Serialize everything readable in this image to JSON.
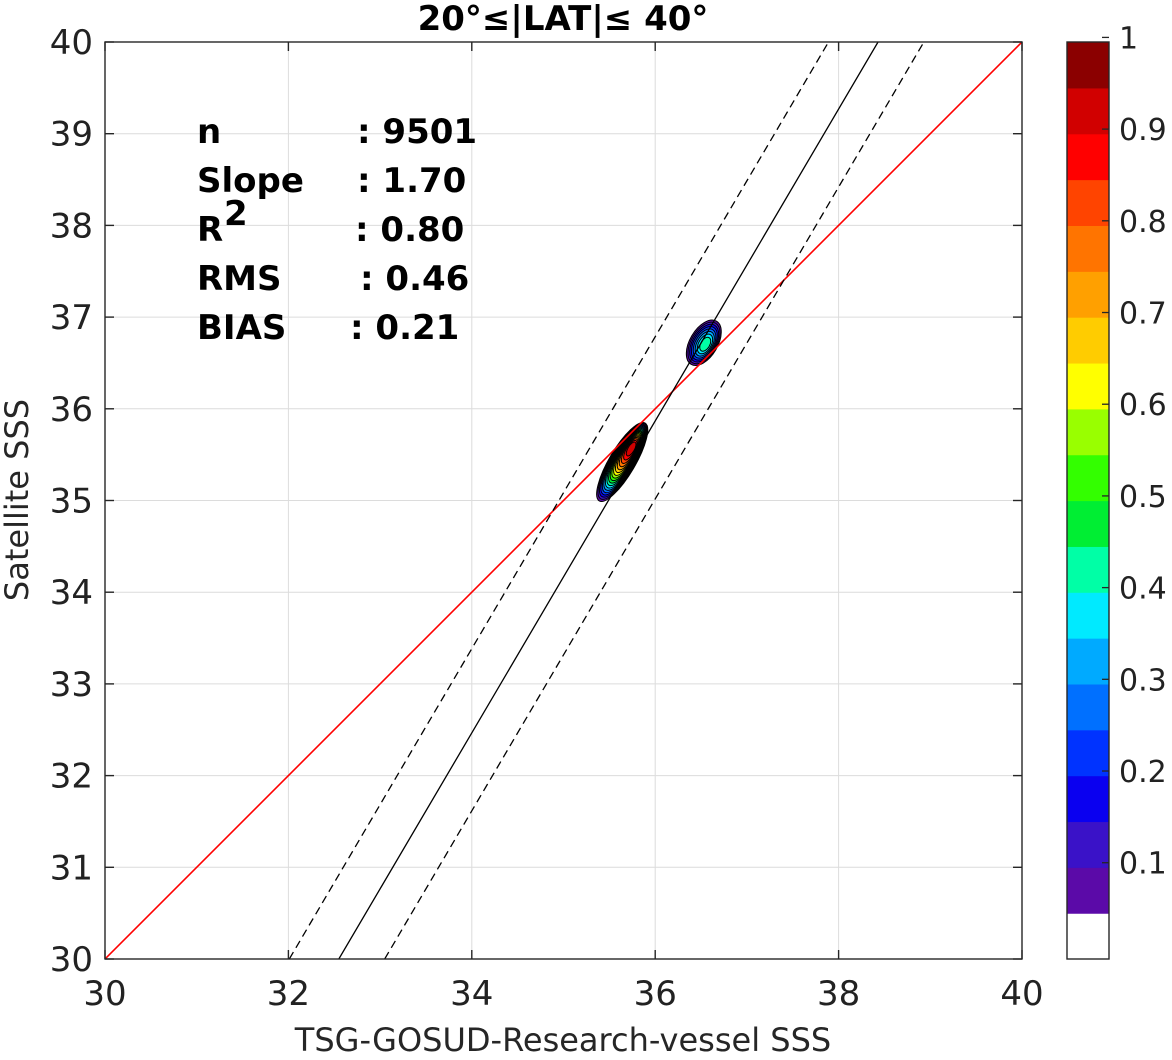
{
  "chart_data": {
    "type": "contour",
    "title": "20°≤|LAT|≤ 40°",
    "xlabel": "TSG-GOSUD-Research-vessel SSS",
    "ylabel": "Satellite SSS",
    "xlim": [
      30,
      40
    ],
    "ylim": [
      30,
      40
    ],
    "x_ticks": [
      "30",
      "32",
      "34",
      "36",
      "38",
      "40"
    ],
    "y_ticks": [
      "30",
      "31",
      "32",
      "33",
      "34",
      "35",
      "36",
      "37",
      "38",
      "39",
      "40"
    ],
    "grid": true,
    "stats": [
      {
        "label": "n",
        "value": ": 9501"
      },
      {
        "label": "Slope",
        "value": ": 1.70"
      },
      {
        "label": "R",
        "sup": "2",
        "value": ": 0.80"
      },
      {
        "label": "RMS",
        "value": ": 0.46"
      },
      {
        "label": "BIAS",
        "value": ": 0.21"
      }
    ],
    "lines": [
      {
        "name": "one-to-one",
        "color": "#ff0000",
        "style": "solid",
        "points": [
          [
            30,
            30
          ],
          [
            40,
            40
          ]
        ]
      },
      {
        "name": "regression",
        "color": "#000000",
        "style": "solid",
        "points": [
          [
            32.55,
            30
          ],
          [
            38.43,
            40
          ]
        ]
      },
      {
        "name": "upper-bound",
        "color": "#000000",
        "style": "dashed",
        "points": [
          [
            32.01,
            30
          ],
          [
            37.89,
            40
          ]
        ]
      },
      {
        "name": "lower-bound",
        "color": "#000000",
        "style": "dashed",
        "points": [
          [
            33.05,
            30
          ],
          [
            38.93,
            40
          ]
        ]
      }
    ],
    "density_peaks": [
      {
        "x": 35.75,
        "y": 35.58,
        "peak": 0.95
      },
      {
        "x": 36.55,
        "y": 36.7,
        "peak": 0.45
      }
    ],
    "colorbar": {
      "range": [
        0,
        1
      ],
      "tick_labels": [
        "0.1",
        "0.2",
        "0.3",
        "0.4",
        "0.5",
        "0.6",
        "0.7",
        "0.8",
        "0.9",
        "1"
      ],
      "tick_values": [
        0.1,
        0.2,
        0.3,
        0.4,
        0.5,
        0.6,
        0.7,
        0.8,
        0.9,
        1.0
      ],
      "band_colors": [
        "#ffffff",
        "#5b0aa8",
        "#3a12c8",
        "#0a00f0",
        "#0033ff",
        "#0070ff",
        "#00aaff",
        "#00eaff",
        "#00ffa6",
        "#00ee33",
        "#33ff00",
        "#99ff00",
        "#ffff00",
        "#ffcc00",
        "#ffa000",
        "#ff7400",
        "#ff4400",
        "#ff0000",
        "#d10000",
        "#8b0000"
      ]
    }
  }
}
